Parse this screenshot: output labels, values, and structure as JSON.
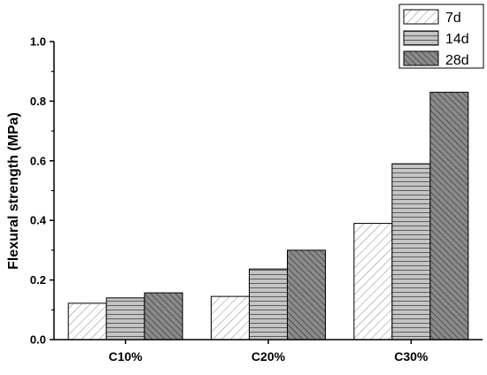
{
  "chart_data": {
    "type": "bar",
    "categories": [
      "C10%",
      "C20%",
      "C30%"
    ],
    "series": [
      {
        "name": "7d",
        "values": [
          0.122,
          0.145,
          0.39
        ],
        "color": "#ffffff",
        "pattern": "light-diagonal"
      },
      {
        "name": "14d",
        "values": [
          0.14,
          0.237,
          0.59
        ],
        "color": "#bfbfbf",
        "pattern": "horizontal"
      },
      {
        "name": "28d",
        "values": [
          0.157,
          0.3,
          0.83
        ],
        "color": "#7f7f7f",
        "pattern": "dark-diagonal"
      }
    ],
    "xlabel": "",
    "ylabel": "Flexural strength (MPa)",
    "ylim": [
      0,
      1.0
    ],
    "yticks": [
      "0.0",
      "0.2",
      "0.4",
      "0.6",
      "0.8",
      "1.0"
    ],
    "legend_position": "top-right",
    "grid": false
  }
}
